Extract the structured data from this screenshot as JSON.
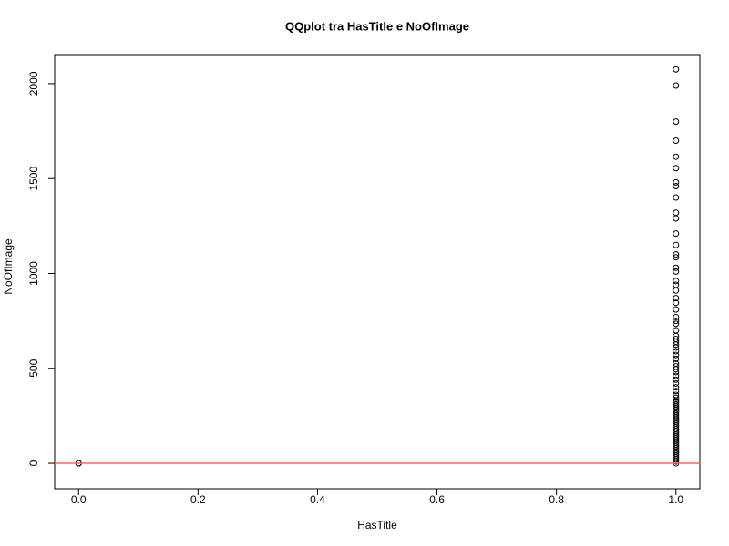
{
  "chart_data": {
    "type": "scatter",
    "title": "QQplot tra HasTitle e NoOfImage",
    "x_label": "HasTitle",
    "y_label": "NoOfImage",
    "x": [
      0,
      0,
      0,
      0,
      0,
      1,
      1,
      1,
      1,
      1,
      1,
      1,
      1,
      1,
      1,
      1,
      1,
      1,
      1,
      1,
      1,
      1,
      1,
      1,
      1,
      1,
      1,
      1,
      1,
      1,
      1,
      1,
      1,
      1,
      1,
      1,
      1,
      1,
      1,
      1,
      1,
      1,
      1,
      1,
      1,
      1,
      1,
      1,
      1,
      1,
      1,
      1,
      1,
      1,
      1,
      1,
      1,
      1,
      1,
      1,
      1,
      1,
      1,
      1,
      1,
      1,
      1,
      1,
      1,
      1,
      1,
      1,
      1,
      1,
      1,
      1,
      1,
      1,
      1,
      1,
      1,
      1,
      1,
      1,
      1
    ],
    "values": [
      0,
      0,
      0,
      0,
      0,
      2075,
      1990,
      1800,
      1700,
      1615,
      1555,
      1480,
      1460,
      1400,
      1320,
      1290,
      1210,
      1150,
      1100,
      1085,
      1030,
      1010,
      960,
      940,
      910,
      870,
      845,
      810,
      770,
      750,
      735,
      700,
      670,
      655,
      640,
      625,
      610,
      590,
      570,
      550,
      525,
      510,
      495,
      480,
      460,
      440,
      420,
      400,
      380,
      360,
      345,
      330,
      320,
      310,
      300,
      290,
      280,
      270,
      260,
      250,
      240,
      230,
      220,
      210,
      200,
      190,
      180,
      170,
      160,
      150,
      140,
      130,
      120,
      110,
      100,
      90,
      80,
      70,
      60,
      50,
      40,
      30,
      20,
      10,
      0
    ],
    "color": "#000000",
    "reference_line": {
      "y": 0,
      "color": "#ff6666"
    },
    "xlim": [
      -0.04,
      1.04
    ],
    "ylim": [
      -134,
      2153
    ],
    "xticks": [
      {
        "value": 0,
        "label": "0.0"
      },
      0.2,
      0.4,
      0.6,
      0.8,
      {
        "value": 1,
        "label": "1.0"
      }
    ],
    "yticks": [
      0,
      500,
      1000,
      1500,
      2000
    ]
  }
}
